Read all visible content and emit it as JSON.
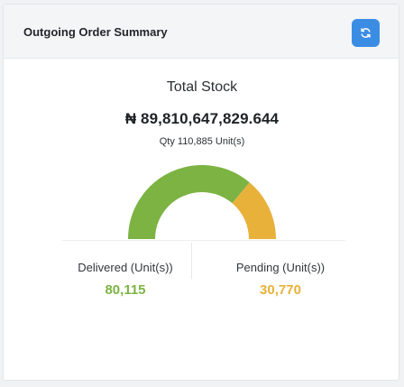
{
  "header": {
    "title": "Outgoing Order Summary",
    "refresh_icon": "refresh-icon"
  },
  "summary": {
    "label": "Total Stock",
    "value": "₦ 89,810,647,829.644",
    "qty": "Qty 110,885 Unit(s)"
  },
  "gauge": {
    "delivered": 80115,
    "pending": 30770
  },
  "stats": {
    "delivered_label": "Delivered (Unit(s))",
    "delivered_value": "80,115",
    "pending_label": "Pending (Unit(s))",
    "pending_value": "30,770"
  },
  "colors": {
    "delivered": "#7cb342",
    "pending": "#e8b13a",
    "accent": "#3b8de4"
  }
}
